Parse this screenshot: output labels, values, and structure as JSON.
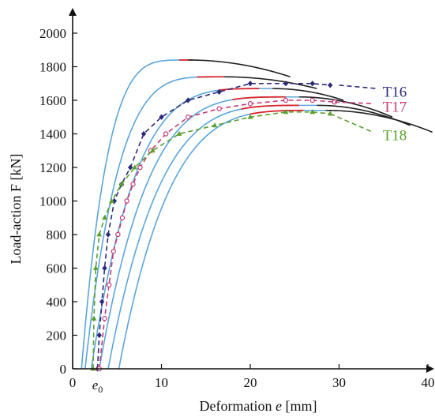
{
  "chart_data": {
    "type": "line",
    "xlabel_prefix": "Deformation ",
    "xlabel_var": "e",
    "xlabel_suffix": " [mm]",
    "ylabel": "Load-action  F  [kN]",
    "xlim": [
      0,
      40
    ],
    "ylim": [
      0,
      2000
    ],
    "x_ticks": [
      0,
      10,
      20,
      30,
      40
    ],
    "y_ticks": [
      0,
      200,
      400,
      600,
      800,
      1000,
      1200,
      1400,
      1600,
      1800,
      2000
    ],
    "e0_label": "e",
    "e0_sub": "0",
    "e0_x": 2.8,
    "grid": false,
    "colors": {
      "model_rising": "#5aa6de",
      "model_peak": "#d9262c",
      "model_falling": "#222222",
      "T16": "#2b2a7a",
      "T17": "#c43a78",
      "T18": "#5aa02c"
    },
    "model_curves": [
      {
        "x0": 1.0,
        "peak_x": 13.0,
        "peak_y": 1840,
        "end_x": 24.5,
        "end_y": 1740,
        "red_from": 12.0,
        "red_to": 13.5
      },
      {
        "x0": 1.4,
        "peak_x": 17.0,
        "peak_y": 1740,
        "end_x": 27.5,
        "end_y": 1670,
        "red_from": 14.0,
        "red_to": 17.0
      },
      {
        "x0": 2.1,
        "peak_x": 22.5,
        "peak_y": 1670,
        "end_x": 30.5,
        "end_y": 1600,
        "red_from": 16.5,
        "red_to": 21.0
      },
      {
        "x0": 3.0,
        "peak_x": 25.5,
        "peak_y": 1620,
        "end_x": 36.0,
        "end_y": 1500,
        "red_from": 18.0,
        "red_to": 24.0
      },
      {
        "x0": 4.0,
        "peak_x": 27.5,
        "peak_y": 1570,
        "end_x": 38.0,
        "end_y": 1450,
        "red_from": 19.0,
        "red_to": 25.5
      },
      {
        "x0": 5.2,
        "peak_x": 28.5,
        "peak_y": 1540,
        "end_x": 40.5,
        "end_y": 1410,
        "red_from": 20.0,
        "red_to": 26.0
      }
    ],
    "series": [
      {
        "name": "T16",
        "marker": "diamond",
        "x": [
          2.8,
          3.0,
          3.3,
          3.6,
          4.0,
          4.7,
          5.5,
          6.5,
          8.0,
          10.0,
          13.0,
          16.5,
          20.0,
          24.0,
          27.0,
          29.0
        ],
        "y": [
          0,
          200,
          400,
          600,
          800,
          1000,
          1100,
          1200,
          1400,
          1500,
          1600,
          1650,
          1700,
          1700,
          1700,
          1690
        ]
      },
      {
        "name": "T17",
        "marker": "circle",
        "x": [
          3.0,
          3.6,
          4.1,
          4.6,
          5.1,
          5.6,
          6.1,
          6.8,
          7.6,
          8.8,
          10.5,
          13.0,
          16.5,
          20.0,
          24.0,
          27.0,
          29.5
        ],
        "y": [
          0,
          300,
          500,
          700,
          800,
          900,
          1000,
          1100,
          1200,
          1300,
          1400,
          1500,
          1550,
          1580,
          1600,
          1600,
          1590
        ]
      },
      {
        "name": "T18",
        "marker": "triangle",
        "x": [
          2.3,
          2.4,
          2.6,
          3.0,
          3.6,
          4.4,
          5.5,
          7.0,
          9.0,
          12.0,
          16.0,
          20.0,
          24.0,
          27.0,
          29.0
        ],
        "y": [
          0,
          300,
          600,
          800,
          900,
          1000,
          1100,
          1200,
          1300,
          1400,
          1450,
          1500,
          1530,
          1530,
          1520
        ]
      }
    ],
    "series_labels": [
      {
        "name": "T16",
        "text": "T16"
      },
      {
        "name": "T17",
        "text": "T17"
      },
      {
        "name": "T18",
        "text": "T18"
      }
    ]
  }
}
